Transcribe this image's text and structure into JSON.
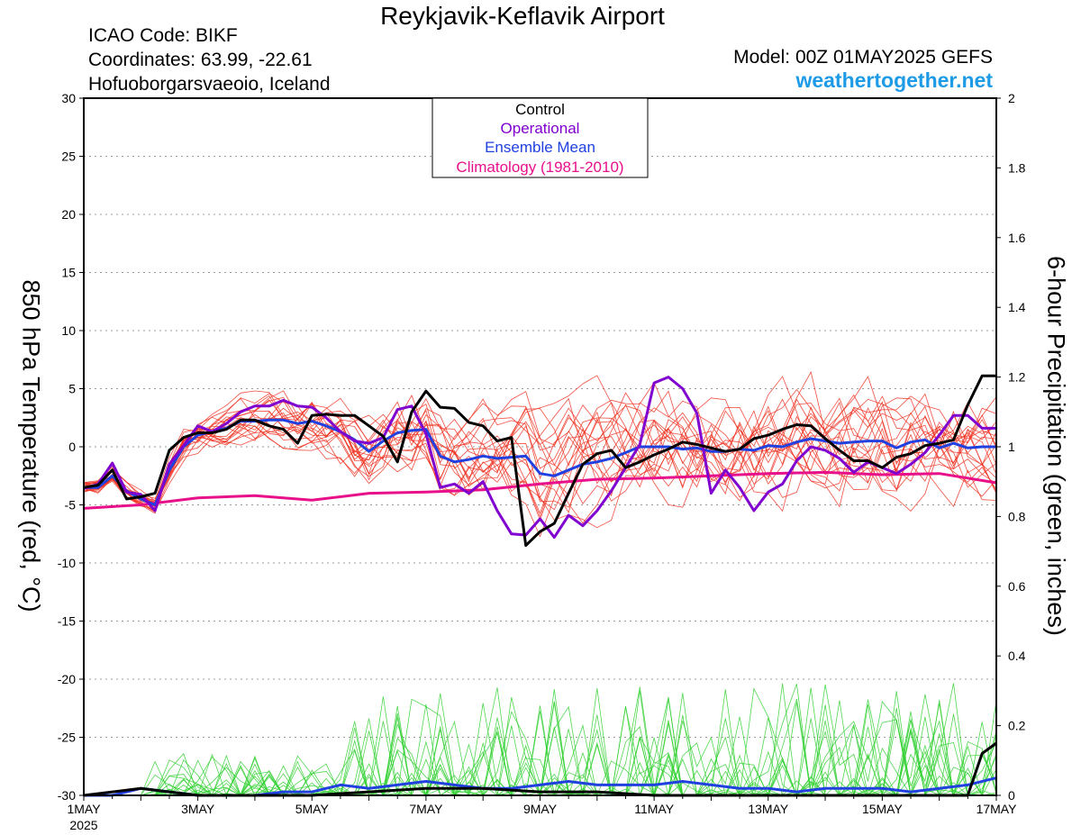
{
  "header": {
    "title": "Reykjavik-Keflavik Airport",
    "icao": "ICAO Code: BIKF",
    "coordinates": "Coordinates: 63.99, -22.61",
    "location": "Hofuoborgarsvaeoio, Iceland",
    "model": "Model: 00Z 01MAY2025 GEFS",
    "site": "weathertogether.net"
  },
  "colors": {
    "control": "#000000",
    "operational": "#8000d0",
    "ensemble_mean": "#2040e0",
    "climatology": "#e8108a",
    "members_temp": "#f03020",
    "members_precip": "#30d030",
    "site": "#1e9be6"
  },
  "chart_data": {
    "type": "line",
    "xlabel": "",
    "ylabel": "850 hPa Temperature (red, °C)",
    "y2label": "6-hour Precipitation (green, inches)",
    "ylim": [
      -30,
      30
    ],
    "y2lim": [
      0,
      2
    ],
    "xlim_days": [
      1,
      17
    ],
    "x_ticks": [
      {
        "day": 1,
        "label": "1MAY",
        "sub": "2025"
      },
      {
        "day": 3,
        "label": "3MAY"
      },
      {
        "day": 5,
        "label": "5MAY"
      },
      {
        "day": 7,
        "label": "7MAY"
      },
      {
        "day": 9,
        "label": "9MAY"
      },
      {
        "day": 11,
        "label": "11MAY"
      },
      {
        "day": 13,
        "label": "13MAY"
      },
      {
        "day": 15,
        "label": "15MAY"
      },
      {
        "day": 17,
        "label": "17MAY"
      }
    ],
    "y_ticks": [
      30,
      25,
      20,
      15,
      10,
      5,
      0,
      -5,
      -10,
      -15,
      -20,
      -25,
      -30
    ],
    "y2_ticks": [
      "2",
      "1.8",
      "1.6",
      "1.4",
      "1.2",
      "1",
      "0.8",
      "0.6",
      "0.4",
      "0.2",
      "0"
    ],
    "grid": true,
    "legend": {
      "placement": "top-center",
      "entries": [
        "Control",
        "Operational",
        "Ensemble Mean",
        "Climatology (1981-2010)"
      ]
    },
    "series": [
      {
        "name": "Control",
        "x": [
          1,
          1.25,
          1.5,
          1.75,
          2,
          2.25,
          2.5,
          2.75,
          3,
          3.25,
          3.5,
          3.75,
          4,
          4.25,
          4.5,
          4.75,
          5,
          5.25,
          5.5,
          5.75,
          6,
          6.25,
          6.5,
          6.75,
          7,
          7.25,
          7.5,
          7.75,
          8,
          8.25,
          8.5,
          8.75,
          9,
          9.25,
          9.5,
          9.75,
          10,
          10.25,
          10.5,
          10.75,
          11,
          11.25,
          11.5,
          11.75,
          12,
          12.25,
          12.5,
          12.75,
          13,
          13.25,
          13.5,
          13.75,
          14,
          14.25,
          14.5,
          14.75,
          15,
          15.25,
          15.5,
          15.75,
          16,
          16.25,
          16.5,
          16.75,
          17
        ],
        "values": [
          -3.5,
          -3.3,
          -2,
          -4.5,
          -4.3,
          -4,
          -0.3,
          0.8,
          1.2,
          1.2,
          1.5,
          2.3,
          2.3,
          1.8,
          1.5,
          0.3,
          2.7,
          2.8,
          2.7,
          2.7,
          1.8,
          0.9,
          -1.3,
          3,
          4.8,
          3.4,
          3.3,
          2.1,
          1.8,
          0.5,
          0.8,
          -8.5,
          -7.3,
          -6.6,
          -4,
          -1.5,
          -0.6,
          -0.3,
          -1.8,
          -1.3,
          -0.7,
          -0.2,
          0.4,
          0.2,
          -0.1,
          -0.4,
          -0.2,
          0.7,
          1,
          1.5,
          1.9,
          1.8,
          0.7,
          -0.3,
          -1.2,
          -1.2,
          -1.8,
          -0.9,
          -0.6,
          0.1,
          0.3,
          0.6,
          3.6,
          6.1,
          6.1
        ]
      },
      {
        "name": "Operational",
        "x": [
          1,
          1.25,
          1.5,
          1.75,
          2,
          2.25,
          2.5,
          2.75,
          3,
          3.25,
          3.5,
          3.75,
          4,
          4.25,
          4.5,
          4.75,
          5,
          5.25,
          5.5,
          5.75,
          6,
          6.25,
          6.5,
          6.75,
          7,
          7.25,
          7.5,
          7.75,
          8,
          8.25,
          8.5,
          8.75,
          9,
          9.25,
          9.5,
          9.75,
          10,
          10.25,
          10.5,
          10.75,
          11,
          11.25,
          11.5,
          11.75,
          12,
          12.25,
          12.5,
          12.75,
          13,
          13.25,
          13.5,
          13.75,
          14,
          14.25,
          14.5,
          14.75,
          15,
          15.25,
          15.5,
          15.75,
          16,
          16.25,
          16.5,
          16.75,
          17
        ],
        "values": [
          -3.6,
          -3.2,
          -1.4,
          -3.9,
          -4.1,
          -5.5,
          -1.5,
          0.1,
          1.8,
          1.3,
          2,
          3,
          3.5,
          3.5,
          4,
          3.5,
          3.4,
          2.5,
          1.3,
          0.5,
          0.3,
          0.8,
          3.2,
          3.5,
          1.1,
          -3.5,
          -3.2,
          -4,
          -3,
          -5.5,
          -7.5,
          -7.6,
          -6.2,
          -7.8,
          -5.9,
          -6.8,
          -5.5,
          -3.8,
          -1.8,
          0.2,
          5.5,
          6,
          5,
          2.9,
          -4,
          -2,
          -3.5,
          -5.5,
          -3.9,
          -3.2,
          -1.2,
          0,
          -0.3,
          -1,
          -2.2,
          -1.3,
          -1.8,
          -2.3,
          -1.5,
          -0.5,
          1,
          2.7,
          2.7,
          1.6,
          1.6
        ]
      },
      {
        "name": "Ensemble Mean",
        "x": [
          1,
          1.25,
          1.5,
          1.75,
          2,
          2.25,
          2.5,
          2.75,
          3,
          3.25,
          3.5,
          3.75,
          4,
          4.25,
          4.5,
          4.75,
          5,
          5.25,
          5.5,
          5.75,
          6,
          6.25,
          6.5,
          6.75,
          7,
          7.25,
          7.5,
          7.75,
          8,
          8.25,
          8.5,
          8.75,
          9,
          9.25,
          9.5,
          9.75,
          10,
          10.25,
          10.5,
          10.75,
          11,
          11.25,
          11.5,
          11.75,
          12,
          12.25,
          12.5,
          12.75,
          13,
          13.25,
          13.5,
          13.75,
          14,
          14.25,
          14.5,
          14.75,
          15,
          15.25,
          15.5,
          15.75,
          16,
          16.25,
          16.5,
          16.75,
          17
        ],
        "values": [
          -3.5,
          -3.5,
          -2.5,
          -3.8,
          -4.5,
          -5,
          -2,
          0,
          1,
          1.3,
          1.6,
          2.2,
          2.2,
          2.3,
          2.3,
          2,
          2.2,
          1.8,
          1.3,
          0.6,
          -0.4,
          0.5,
          1.2,
          1.4,
          1.5,
          -0.8,
          -1.3,
          -1.1,
          -0.8,
          -1,
          -0.9,
          -0.8,
          -2.3,
          -2.5,
          -2,
          -1.5,
          -1.3,
          -1,
          -0.5,
          0,
          0,
          0,
          -0.2,
          -0.1,
          -0.4,
          -0.4,
          -0.2,
          -0.3,
          0.1,
          0,
          0.4,
          0.7,
          0.5,
          0.3,
          0.4,
          0.5,
          0.5,
          -0.1,
          0.4,
          0.6,
          -0.1,
          0.3,
          -0.1,
          0,
          0
        ]
      },
      {
        "name": "Climatology (1981-2010)",
        "x": [
          1,
          2,
          3,
          4,
          5,
          6,
          7,
          8,
          9,
          10,
          11,
          12,
          13,
          14,
          15,
          16,
          17
        ],
        "values": [
          -5.3,
          -5,
          -4.4,
          -4.2,
          -4.6,
          -4,
          -3.9,
          -3.7,
          -3.2,
          -2.8,
          -2.7,
          -2.5,
          -2.3,
          -2.2,
          -2.4,
          -2.3,
          -3.1
        ]
      }
    ],
    "precip_series": [
      {
        "name": "Control",
        "x": [
          1,
          2,
          3,
          4,
          5,
          6,
          7,
          8,
          9,
          10,
          11,
          12,
          13,
          14,
          15,
          16,
          16.5,
          16.75,
          17
        ],
        "values": [
          0,
          0.02,
          0,
          0,
          0,
          0.01,
          0.02,
          0.02,
          0.01,
          0.01,
          0,
          0,
          0,
          0,
          0,
          0,
          0,
          0.12,
          0.15
        ]
      },
      {
        "name": "Ensemble Mean",
        "x": [
          1,
          1.5,
          2,
          2.5,
          3,
          3.5,
          4,
          4.5,
          5,
          5.5,
          6,
          6.5,
          7,
          7.5,
          8,
          8.5,
          9,
          9.5,
          10,
          10.5,
          11,
          11.5,
          12,
          12.5,
          13,
          13.5,
          14,
          14.5,
          15,
          15.5,
          16,
          16.5,
          17
        ],
        "values": [
          0,
          0,
          0.02,
          0.01,
          0,
          0,
          0,
          0.01,
          0.01,
          0.03,
          0.02,
          0.03,
          0.04,
          0.03,
          0.02,
          0.02,
          0.03,
          0.04,
          0.03,
          0.03,
          0.03,
          0.04,
          0.03,
          0.02,
          0.02,
          0.01,
          0.02,
          0.02,
          0.02,
          0.01,
          0.02,
          0.03,
          0.05
        ]
      }
    ]
  }
}
